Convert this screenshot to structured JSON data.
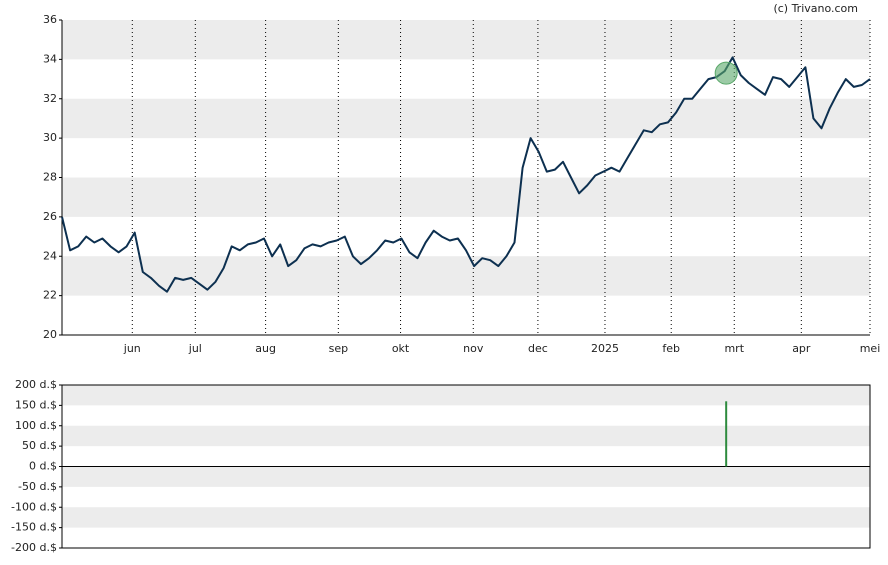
{
  "credit": "(c) Trivano.com",
  "chart_data": [
    {
      "type": "line",
      "color": "#0d3050",
      "x": [
        0,
        1,
        2,
        3,
        4,
        5,
        6,
        7,
        8,
        9,
        10,
        11,
        12,
        13,
        14,
        15,
        16,
        17,
        18,
        19,
        20,
        21,
        22,
        23,
        24,
        25,
        26,
        27,
        28,
        29,
        30,
        31,
        32,
        33,
        34,
        35,
        36,
        37,
        38,
        39,
        40,
        41,
        42,
        43,
        44,
        45,
        46,
        47,
        48,
        49,
        50,
        51,
        52,
        53,
        54,
        55,
        56,
        57,
        58,
        59,
        60,
        61,
        62,
        63,
        64,
        65,
        66,
        67,
        68,
        69,
        70,
        71,
        72,
        73,
        74,
        75,
        76,
        77,
        78,
        79,
        80,
        81,
        82,
        83,
        84,
        85,
        86,
        87,
        88,
        89,
        90,
        91,
        92,
        93,
        94,
        95,
        96,
        97,
        98,
        99,
        100
      ],
      "values": [
        26.0,
        24.3,
        24.5,
        25.0,
        24.7,
        24.9,
        24.5,
        24.2,
        24.5,
        25.2,
        23.2,
        22.9,
        22.5,
        22.2,
        22.9,
        22.8,
        22.9,
        22.6,
        22.3,
        22.7,
        23.4,
        24.5,
        24.3,
        24.6,
        24.7,
        24.9,
        24.0,
        24.6,
        23.5,
        23.8,
        24.4,
        24.6,
        24.5,
        24.7,
        24.8,
        25.0,
        24.0,
        23.6,
        23.9,
        24.3,
        24.8,
        24.7,
        24.9,
        24.2,
        23.9,
        24.7,
        25.3,
        25.0,
        24.8,
        24.9,
        24.3,
        23.5,
        23.9,
        23.8,
        23.5,
        24.0,
        24.7,
        28.5,
        30.0,
        29.3,
        28.3,
        28.4,
        28.8,
        28.0,
        27.2,
        27.6,
        28.1,
        28.3,
        28.5,
        28.3,
        29.0,
        29.7,
        30.4,
        30.3,
        30.7,
        30.8,
        31.3,
        32.0,
        32.0,
        32.5,
        33.0,
        33.1,
        33.4,
        34.1,
        33.2,
        32.8,
        32.5,
        32.2,
        33.1,
        33.0,
        32.6,
        33.1,
        33.6,
        31.0,
        30.5,
        31.5,
        32.3,
        33.0,
        32.6,
        32.7,
        33.0
      ],
      "marker": {
        "x": 82.2,
        "y": 33.3,
        "color": "#5aa86a"
      },
      "xlim": [
        0,
        100
      ],
      "xticks": [
        {
          "value": 8.7,
          "label": "jun"
        },
        {
          "value": 16.5,
          "label": "jul"
        },
        {
          "value": 25.2,
          "label": "aug"
        },
        {
          "value": 34.2,
          "label": "sep"
        },
        {
          "value": 41.9,
          "label": "okt"
        },
        {
          "value": 50.9,
          "label": "nov"
        },
        {
          "value": 58.9,
          "label": "dec"
        },
        {
          "value": 67.2,
          "label": "2025"
        },
        {
          "value": 75.4,
          "label": "feb"
        },
        {
          "value": 83.2,
          "label": "mrt"
        },
        {
          "value": 91.5,
          "label": "apr"
        },
        {
          "value": 100,
          "label": "mei"
        }
      ],
      "ylim": [
        20,
        36
      ],
      "yticks": [
        20,
        22,
        24,
        26,
        28,
        30,
        32,
        34,
        36
      ],
      "grid": true
    },
    {
      "type": "bar",
      "color": "#2e8b3e",
      "x": [
        82.2
      ],
      "values": [
        160
      ],
      "xlim": [
        0,
        100
      ],
      "ylim": [
        -200,
        200
      ],
      "yticks": [
        {
          "value": -200,
          "label": "-200 d.$"
        },
        {
          "value": -150,
          "label": "-150 d.$"
        },
        {
          "value": -100,
          "label": "-100 d.$"
        },
        {
          "value": -50,
          "label": "-50 d.$"
        },
        {
          "value": 0,
          "label": "0 d.$"
        },
        {
          "value": 50,
          "label": "50 d.$"
        },
        {
          "value": 100,
          "label": "100 d.$"
        },
        {
          "value": 150,
          "label": "150 d.$"
        },
        {
          "value": 200,
          "label": "200 d.$"
        }
      ],
      "grid": true
    }
  ]
}
